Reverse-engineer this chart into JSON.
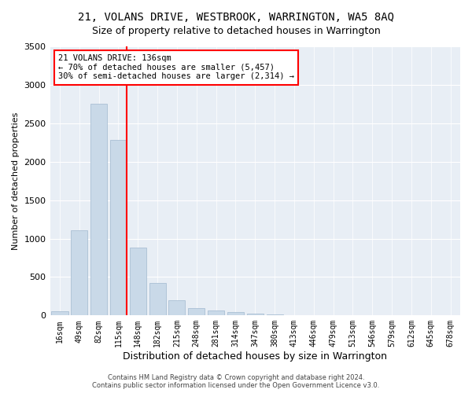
{
  "title": "21, VOLANS DRIVE, WESTBROOK, WARRINGTON, WA5 8AQ",
  "subtitle": "Size of property relative to detached houses in Warrington",
  "xlabel": "Distribution of detached houses by size in Warrington",
  "ylabel": "Number of detached properties",
  "footer_line1": "Contains HM Land Registry data © Crown copyright and database right 2024.",
  "footer_line2": "Contains public sector information licensed under the Open Government Licence v3.0.",
  "annotation_title": "21 VOLANS DRIVE: 136sqm",
  "annotation_line2": "← 70% of detached houses are smaller (5,457)",
  "annotation_line3": "30% of semi-detached houses are larger (2,314) →",
  "bar_labels": [
    "16sqm",
    "49sqm",
    "82sqm",
    "115sqm",
    "148sqm",
    "182sqm",
    "215sqm",
    "248sqm",
    "281sqm",
    "314sqm",
    "347sqm",
    "380sqm",
    "413sqm",
    "446sqm",
    "479sqm",
    "513sqm",
    "546sqm",
    "579sqm",
    "612sqm",
    "645sqm",
    "678sqm"
  ],
  "bar_values": [
    50,
    1110,
    2750,
    2280,
    880,
    420,
    195,
    100,
    60,
    40,
    20,
    12,
    8,
    5,
    3,
    2,
    2,
    1,
    1,
    0,
    0
  ],
  "bar_color": "#c9d9e8",
  "bar_edgecolor": "#a0b8cf",
  "vline_color": "red",
  "vline_x": 3.425,
  "ylim": [
    0,
    3500
  ],
  "yticks": [
    0,
    500,
    1000,
    1500,
    2000,
    2500,
    3000,
    3500
  ],
  "bg_color": "#ffffff",
  "plot_bg_color": "#e8eef5",
  "annotation_box_edgecolor": "red",
  "annotation_box_facecolor": "white",
  "title_fontsize": 10,
  "subtitle_fontsize": 9
}
